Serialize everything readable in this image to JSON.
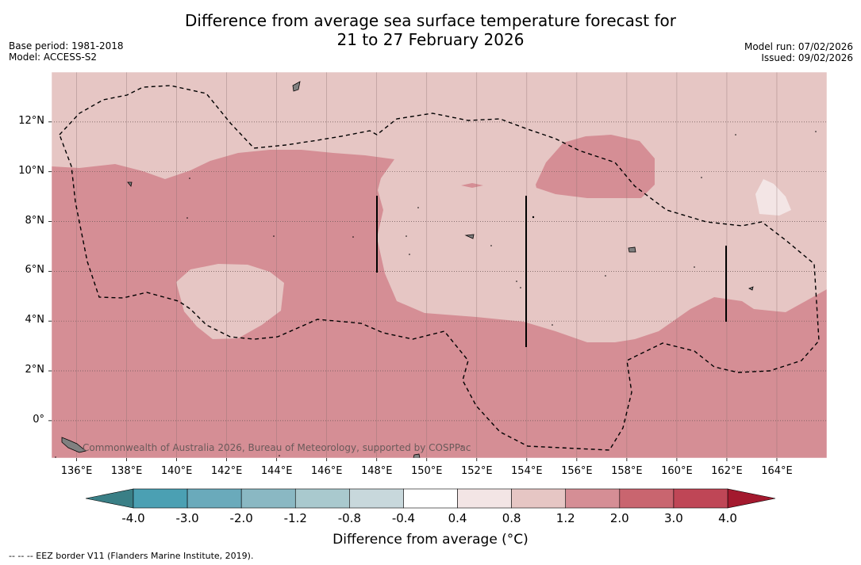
{
  "title": {
    "line1": "Difference from average sea surface temperature forecast for",
    "line2": "21 to 27 February 2026"
  },
  "meta_left": {
    "base_period": "Base period: 1981-2018",
    "model": "Model: ACCESS-S2"
  },
  "meta_right": {
    "model_run": "Model run: 07/02/2026",
    "issued": "Issued: 09/02/2026"
  },
  "map": {
    "lon_range": [
      135,
      166
    ],
    "lat_range": [
      -1.5,
      14
    ],
    "lon_ticks": [
      {
        "lon": 136,
        "label": "136°E"
      },
      {
        "lon": 138,
        "label": "138°E"
      },
      {
        "lon": 140,
        "label": "140°E"
      },
      {
        "lon": 142,
        "label": "142°E"
      },
      {
        "lon": 144,
        "label": "144°E"
      },
      {
        "lon": 146,
        "label": "146°E"
      },
      {
        "lon": 148,
        "label": "148°E"
      },
      {
        "lon": 150,
        "label": "150°E"
      },
      {
        "lon": 152,
        "label": "152°E"
      },
      {
        "lon": 154,
        "label": "154°E"
      },
      {
        "lon": 156,
        "label": "156°E"
      },
      {
        "lon": 158,
        "label": "158°E"
      },
      {
        "lon": 160,
        "label": "160°E"
      },
      {
        "lon": 162,
        "label": "162°E"
      },
      {
        "lon": 164,
        "label": "164°E"
      }
    ],
    "lat_ticks": [
      {
        "lat": 12,
        "label": "12°N"
      },
      {
        "lat": 10,
        "label": "10°N"
      },
      {
        "lat": 8,
        "label": "8°N"
      },
      {
        "lat": 6,
        "label": "6°N"
      },
      {
        "lat": 4,
        "label": "4°N"
      },
      {
        "lat": 2,
        "label": "2°N"
      },
      {
        "lat": 0,
        "label": "0°"
      }
    ],
    "credit": "Commonwealth of Australia 2026, Bureau of Meteorology, supported by COSPPac"
  },
  "colorbar": {
    "title": "Difference from average (°C)",
    "boundaries": [
      "-4.0",
      "-3.0",
      "-2.0",
      "-1.2",
      "-0.8",
      "-0.4",
      "0.4",
      "0.8",
      "1.2",
      "2.0",
      "3.0",
      "4.0"
    ],
    "under_color": "#3a7f86",
    "over_color": "#a3192e",
    "colors": [
      "#4ba0b3",
      "#6aaabb",
      "#8ab8c3",
      "#a9c9ce",
      "#c8d8dc",
      "#ffffff",
      "#f3e5e5",
      "#e6c6c4",
      "#d58e95",
      "#c9656f",
      "#bf4656"
    ]
  },
  "footnote": "--  --  -- EEZ border V11 (Flanders Marine Institute, 2019)."
}
